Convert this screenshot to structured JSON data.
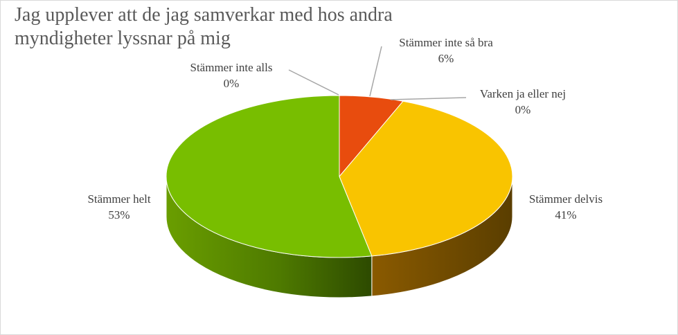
{
  "chart_data": {
    "type": "pie",
    "style": "3d",
    "title_lines": [
      "Jag upplever att de jag samverkar med hos andra",
      "myndigheter lyssnar på mig"
    ],
    "slices": [
      {
        "label": "Stämmer inte alls",
        "value": 0,
        "value_label": "0%",
        "color": "#c00000"
      },
      {
        "label": "Stämmer inte så bra",
        "value": 6,
        "value_label": "6%",
        "color": "#e84c0e"
      },
      {
        "label": "Varken ja eller nej",
        "value": 0,
        "value_label": "0%",
        "color": "#f5a000"
      },
      {
        "label": "Stämmer delvis",
        "value": 41,
        "value_label": "41%",
        "color": "#f9c400"
      },
      {
        "label": "Stämmer helt",
        "value": 53,
        "value_label": "53%",
        "color": "#78be00"
      }
    ],
    "legend": "none"
  }
}
